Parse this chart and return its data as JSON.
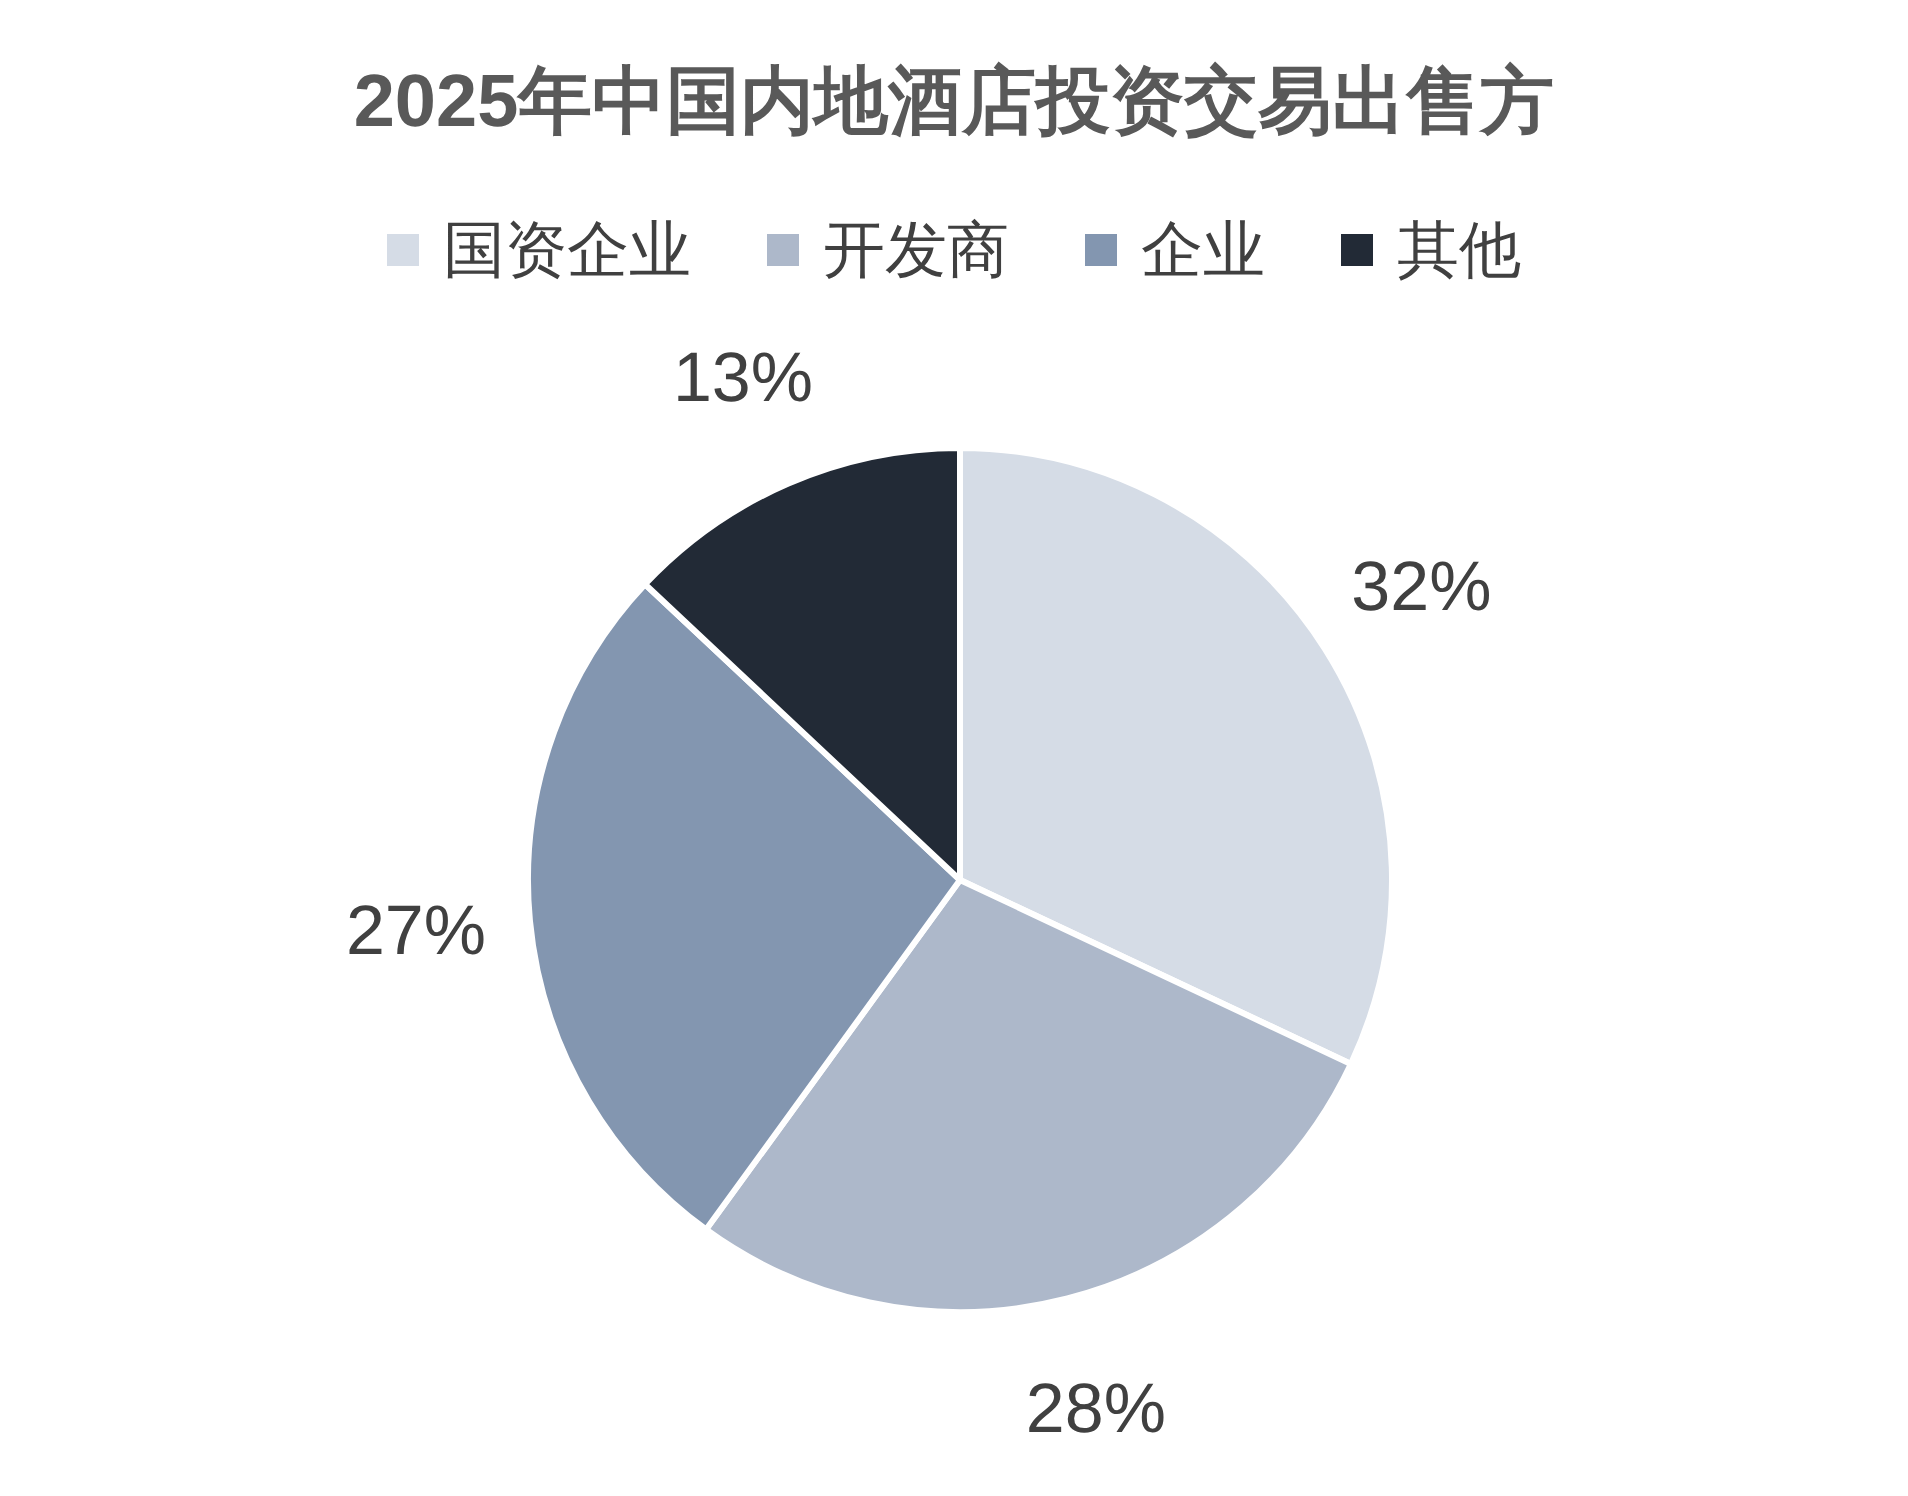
{
  "chart_data": {
    "type": "pie",
    "title": "2025年中国内地酒店投资交易出售方",
    "categories": [
      "国资企业",
      "开发商",
      "企业",
      "其他"
    ],
    "values": [
      32,
      28,
      27,
      13
    ],
    "colors": [
      "#d5dce6",
      "#adb8ca",
      "#8396b0",
      "#222a36"
    ],
    "value_labels": [
      "32%",
      "28%",
      "27%",
      "13%"
    ],
    "legend": "top"
  }
}
